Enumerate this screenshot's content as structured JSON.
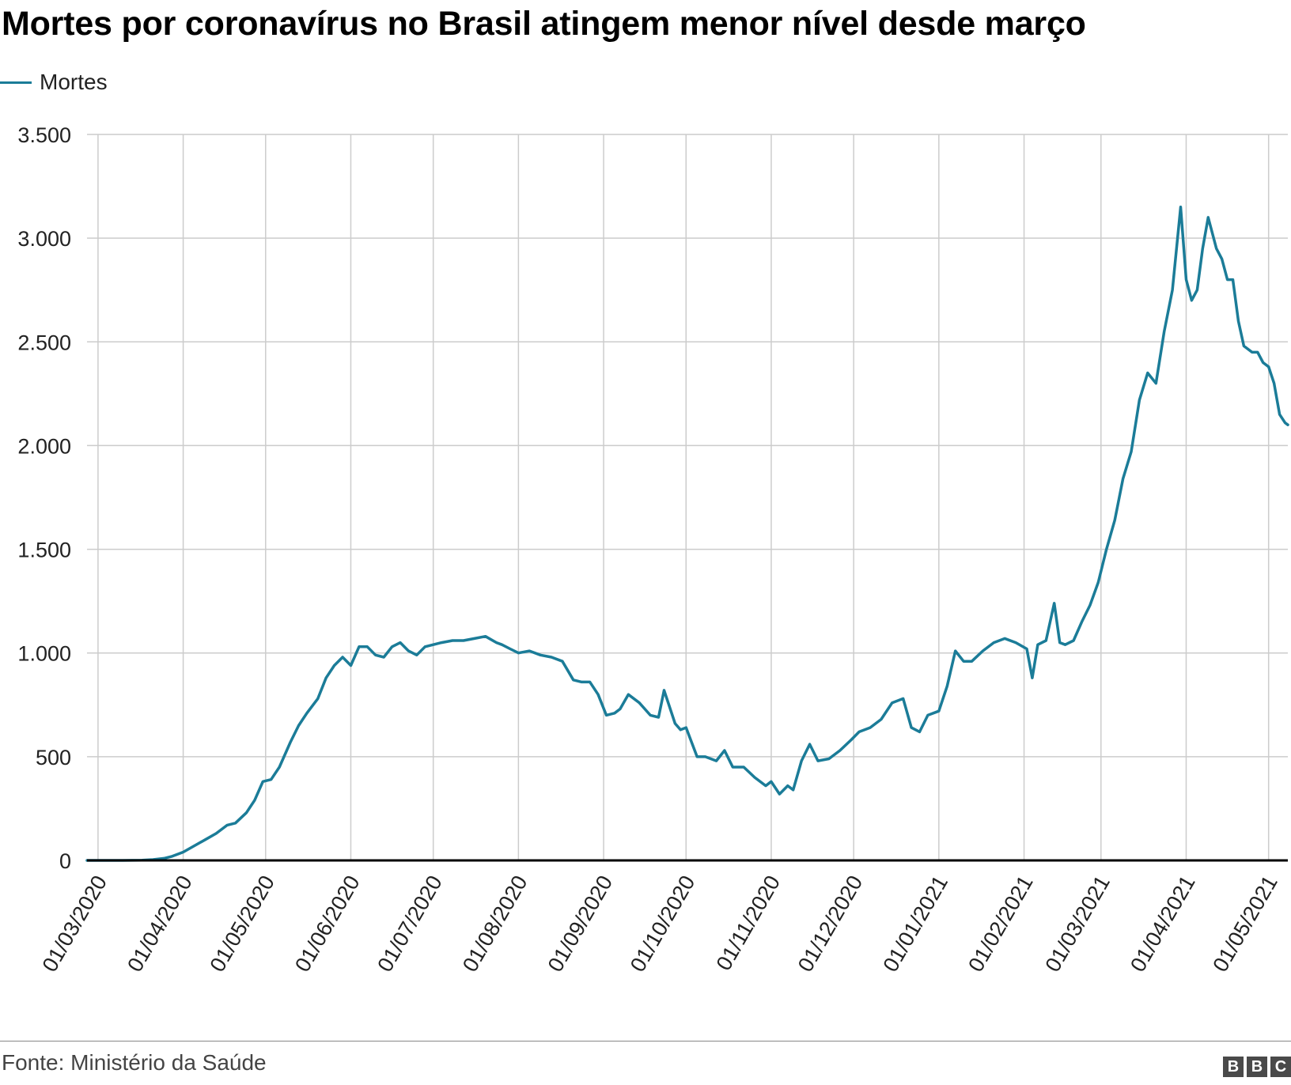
{
  "title": "Mortes por coronavírus no Brasil atingem menor nível desde março",
  "source": "Fonte: Ministério da Saúde",
  "logo": [
    "B",
    "B",
    "C"
  ],
  "colors": {
    "series": "#1b7c98",
    "grid": "#cccccc",
    "axis": "#000000"
  },
  "chart_data": {
    "type": "line",
    "title": "Mortes por coronavírus no Brasil atingem menor nível desde março",
    "xlabel": "",
    "ylabel": "",
    "ylim": [
      0,
      3500
    ],
    "xlim": [
      "2020-02-26",
      "2021-05-08"
    ],
    "yticks": [
      0,
      500,
      1000,
      1500,
      2000,
      2500,
      3000,
      3500
    ],
    "ytick_labels": [
      "0",
      "500",
      "1.000",
      "1.500",
      "2.000",
      "2.500",
      "3.000",
      "3.500"
    ],
    "xticks": [
      "2020-03-01",
      "2020-04-01",
      "2020-05-01",
      "2020-06-01",
      "2020-07-01",
      "2020-08-01",
      "2020-09-01",
      "2020-10-01",
      "2020-11-01",
      "2020-12-01",
      "2021-01-01",
      "2021-02-01",
      "2021-03-01",
      "2021-04-01",
      "2021-05-01"
    ],
    "xtick_labels": [
      "01/03/2020",
      "01/04/2020",
      "01/05/2020",
      "01/06/2020",
      "01/07/2020",
      "01/08/2020",
      "01/09/2020",
      "01/10/2020",
      "01/11/2020",
      "01/12/2020",
      "01/01/2021",
      "01/02/2021",
      "01/03/2021",
      "01/04/2021",
      "01/05/2021"
    ],
    "grid": true,
    "legend": "top-left",
    "series": [
      {
        "name": "Mortes",
        "x": [
          "2020-02-26",
          "2020-03-01",
          "2020-03-10",
          "2020-03-17",
          "2020-03-21",
          "2020-03-25",
          "2020-03-28",
          "2020-04-01",
          "2020-04-05",
          "2020-04-09",
          "2020-04-13",
          "2020-04-17",
          "2020-04-20",
          "2020-04-24",
          "2020-04-27",
          "2020-04-30",
          "2020-05-03",
          "2020-05-06",
          "2020-05-10",
          "2020-05-13",
          "2020-05-16",
          "2020-05-20",
          "2020-05-23",
          "2020-05-26",
          "2020-05-29",
          "2020-06-01",
          "2020-06-04",
          "2020-06-07",
          "2020-06-10",
          "2020-06-13",
          "2020-06-16",
          "2020-06-19",
          "2020-06-22",
          "2020-06-25",
          "2020-06-28",
          "2020-07-01",
          "2020-07-04",
          "2020-07-08",
          "2020-07-12",
          "2020-07-16",
          "2020-07-20",
          "2020-07-24",
          "2020-07-26",
          "2020-07-29",
          "2020-08-01",
          "2020-08-05",
          "2020-08-09",
          "2020-08-13",
          "2020-08-17",
          "2020-08-21",
          "2020-08-24",
          "2020-08-27",
          "2020-08-30",
          "2020-09-02",
          "2020-09-05",
          "2020-09-07",
          "2020-09-10",
          "2020-09-14",
          "2020-09-18",
          "2020-09-21",
          "2020-09-23",
          "2020-09-27",
          "2020-09-29",
          "2020-10-01",
          "2020-10-05",
          "2020-10-08",
          "2020-10-12",
          "2020-10-15",
          "2020-10-18",
          "2020-10-22",
          "2020-10-26",
          "2020-10-30",
          "2020-11-01",
          "2020-11-04",
          "2020-11-07",
          "2020-11-09",
          "2020-11-12",
          "2020-11-15",
          "2020-11-18",
          "2020-11-22",
          "2020-11-26",
          "2020-11-30",
          "2020-12-03",
          "2020-12-07",
          "2020-12-11",
          "2020-12-15",
          "2020-12-19",
          "2020-12-22",
          "2020-12-25",
          "2020-12-28",
          "2021-01-01",
          "2021-01-04",
          "2021-01-07",
          "2021-01-10",
          "2021-01-13",
          "2021-01-17",
          "2021-01-21",
          "2021-01-25",
          "2021-01-29",
          "2021-02-02",
          "2021-02-04",
          "2021-02-06",
          "2021-02-09",
          "2021-02-12",
          "2021-02-14",
          "2021-02-16",
          "2021-02-19",
          "2021-02-22",
          "2021-02-25",
          "2021-02-28",
          "2021-03-03",
          "2021-03-06",
          "2021-03-09",
          "2021-03-12",
          "2021-03-15",
          "2021-03-18",
          "2021-03-21",
          "2021-03-24",
          "2021-03-27",
          "2021-03-30",
          "2021-04-01",
          "2021-04-03",
          "2021-04-05",
          "2021-04-07",
          "2021-04-09",
          "2021-04-12",
          "2021-04-14",
          "2021-04-16",
          "2021-04-18",
          "2021-04-20",
          "2021-04-22",
          "2021-04-25",
          "2021-04-27",
          "2021-04-29",
          "2021-05-01",
          "2021-05-03",
          "2021-05-05",
          "2021-05-07",
          "2021-05-08"
        ],
        "values": [
          0,
          0,
          0,
          1,
          4,
          10,
          20,
          40,
          70,
          100,
          130,
          170,
          180,
          230,
          290,
          380,
          390,
          450,
          570,
          650,
          710,
          780,
          880,
          940,
          980,
          940,
          1030,
          1030,
          990,
          980,
          1030,
          1050,
          1010,
          990,
          1030,
          1040,
          1050,
          1060,
          1060,
          1070,
          1080,
          1050,
          1040,
          1020,
          1000,
          1010,
          990,
          980,
          960,
          870,
          860,
          860,
          800,
          700,
          710,
          730,
          800,
          760,
          700,
          690,
          820,
          660,
          630,
          640,
          500,
          500,
          480,
          530,
          450,
          450,
          400,
          360,
          380,
          320,
          360,
          340,
          480,
          560,
          480,
          490,
          530,
          580,
          620,
          640,
          680,
          760,
          780,
          640,
          620,
          700,
          720,
          840,
          1010,
          960,
          960,
          1010,
          1050,
          1070,
          1050,
          1020,
          880,
          1040,
          1060,
          1240,
          1050,
          1040,
          1060,
          1150,
          1230,
          1340,
          1500,
          1640,
          1840,
          1970,
          2220,
          2350,
          2300,
          2550,
          2750,
          3150,
          2800,
          2700,
          2750,
          2950,
          3100,
          2950,
          2900,
          2800,
          2800,
          2600,
          2480,
          2450,
          2450,
          2400,
          2380,
          2300,
          2150,
          2110,
          2100
        ]
      }
    ]
  }
}
